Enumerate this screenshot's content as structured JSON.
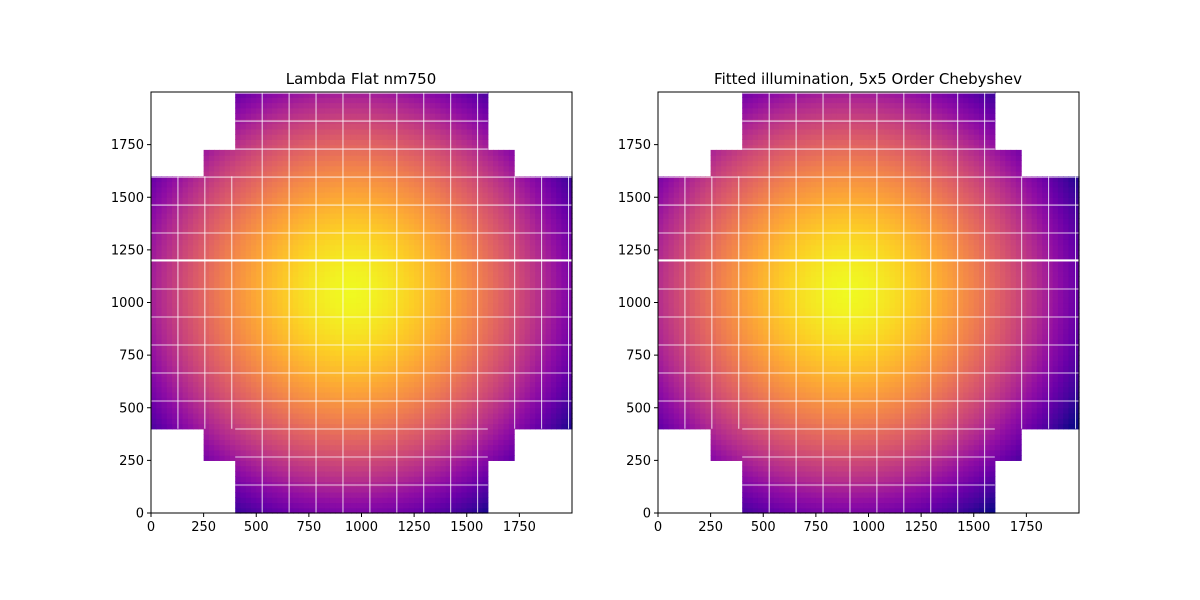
{
  "figure": {
    "background": "#ffffff"
  },
  "chart_data": [
    {
      "type": "heatmap",
      "title": "Lambda Flat nm750",
      "xlabel": "",
      "ylabel": "",
      "xlim": [
        0,
        2000
      ],
      "ylim": [
        0,
        2000
      ],
      "xticks": [
        0,
        250,
        500,
        750,
        1000,
        1250,
        1500,
        1750
      ],
      "yticks": [
        0,
        250,
        500,
        750,
        1000,
        1250,
        1500,
        1750
      ],
      "colormap": "plasma",
      "grid": "white amplifier boundaries",
      "illumination_center": [
        950,
        1050
      ],
      "notes_visible": "focal-plane mosaic of CCD segments"
    },
    {
      "type": "heatmap",
      "title": "Fitted illumination, 5x5 Order Chebyshev",
      "xlabel": "",
      "ylabel": "",
      "xlim": [
        0,
        2000
      ],
      "ylim": [
        0,
        2000
      ],
      "xticks": [
        0,
        250,
        500,
        750,
        1000,
        1250,
        1500,
        1750
      ],
      "yticks": [
        0,
        250,
        500,
        750,
        1000,
        1250,
        1500,
        1750
      ],
      "colormap": "plasma",
      "grid": "white amplifier boundaries",
      "illumination_center": [
        900,
        1050
      ]
    }
  ]
}
